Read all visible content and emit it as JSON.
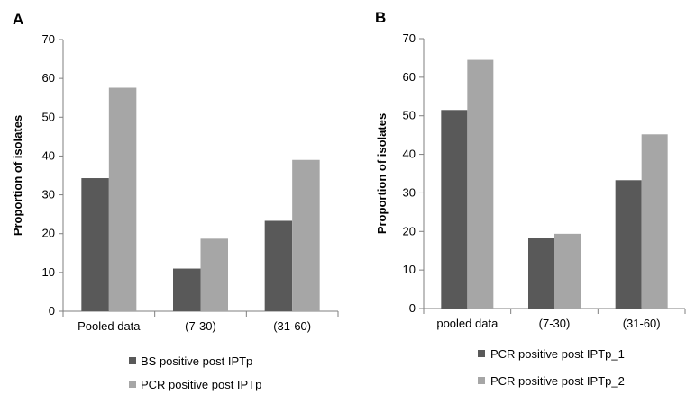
{
  "chart_data": [
    {
      "type": "bar",
      "panel_label": "A",
      "title": "",
      "xlabel": "",
      "ylabel": "Proportion of isolates",
      "ylim": [
        0,
        70
      ],
      "yticks": [
        0,
        10,
        20,
        30,
        40,
        50,
        60,
        70
      ],
      "categories": [
        "Pooled data",
        "(7-30)",
        "(31-60)"
      ],
      "series": [
        {
          "name": "BS positive post IPTp",
          "color": "#595959",
          "values": [
            34.3,
            11.0,
            23.3
          ]
        },
        {
          "name": "PCR positive post IPTp",
          "color": "#a6a6a6",
          "values": [
            57.6,
            18.7,
            39.0
          ]
        }
      ],
      "legend_position": "bottom",
      "grid": false
    },
    {
      "type": "bar",
      "panel_label": "B",
      "title": "",
      "xlabel": "",
      "ylabel": "Proportion of isolates",
      "ylim": [
        0,
        70
      ],
      "yticks": [
        0,
        10,
        20,
        30,
        40,
        50,
        60,
        70
      ],
      "categories": [
        "pooled data",
        "(7-30)",
        "(31-60)"
      ],
      "series": [
        {
          "name": "PCR positive post IPTp_1",
          "color": "#595959",
          "values": [
            51.5,
            18.2,
            33.3
          ]
        },
        {
          "name": "PCR positive post IPTp_2",
          "color": "#a6a6a6",
          "values": [
            64.5,
            19.4,
            45.2
          ]
        }
      ],
      "legend_position": "bottom",
      "grid": false
    }
  ]
}
